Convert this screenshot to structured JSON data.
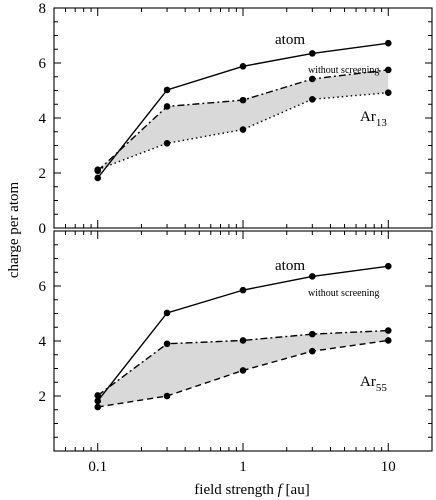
{
  "chart_data": {
    "type": "line",
    "y_axis_label": "charge per atom",
    "x_axis_label_prefix": "field strength ",
    "x_axis_label_symbol": "f",
    "x_axis_label_unit": "  [au]",
    "x_scale": "log",
    "xlim": [
      0.05,
      20
    ],
    "x_ticks": [
      0.1,
      1,
      10
    ],
    "x_tick_labels": [
      "0.1",
      "1",
      "10"
    ],
    "grid": false,
    "panels": [
      {
        "name": "top",
        "ylim": [
          0,
          8
        ],
        "y_ticks": [
          0,
          2,
          4,
          6,
          8
        ],
        "y_tick_labels": [
          "0",
          "2",
          "4",
          "6",
          "8"
        ],
        "x": [
          0.1,
          0.3,
          1,
          3,
          10
        ],
        "series": [
          {
            "id": "atom",
            "name": "atom",
            "style": "solid",
            "values": [
              1.82,
              5.02,
              5.88,
              6.35,
              6.72
            ]
          },
          {
            "id": "without-screening",
            "name": "without screening",
            "style": "dashdot",
            "values": [
              2.08,
              4.42,
              4.65,
              5.42,
              5.75
            ]
          },
          {
            "id": "cluster",
            "name": "Ar13",
            "style": "dotted",
            "values": [
              2.12,
              3.08,
              3.58,
              4.68,
              4.92
            ]
          }
        ],
        "shaded_between": [
          "without-screening",
          "cluster"
        ],
        "annotations": {
          "atom": "atom",
          "without_screening": "without screening",
          "cluster_base": "Ar",
          "cluster_sub": "13"
        }
      },
      {
        "name": "bottom",
        "ylim": [
          0,
          8
        ],
        "y_ticks": [
          2,
          4,
          6
        ],
        "y_tick_labels": [
          "2",
          "4",
          "6"
        ],
        "x": [
          0.1,
          0.3,
          1,
          3,
          10
        ],
        "series": [
          {
            "id": "atom",
            "name": "atom",
            "style": "solid",
            "values": [
              1.82,
              5.02,
              5.85,
              6.35,
              6.72
            ]
          },
          {
            "id": "without-screening",
            "name": "without screening",
            "style": "dashdot",
            "values": [
              2.02,
              3.9,
              4.02,
              4.25,
              4.38
            ]
          },
          {
            "id": "cluster",
            "name": "Ar55",
            "style": "dashed",
            "values": [
              1.6,
              2.0,
              2.93,
              3.63,
              4.02
            ]
          }
        ],
        "shaded_between": [
          "without-screening",
          "cluster"
        ],
        "annotations": {
          "atom": "atom",
          "without_screening": "without screening",
          "cluster_base": "Ar",
          "cluster_sub": "55"
        }
      }
    ]
  }
}
